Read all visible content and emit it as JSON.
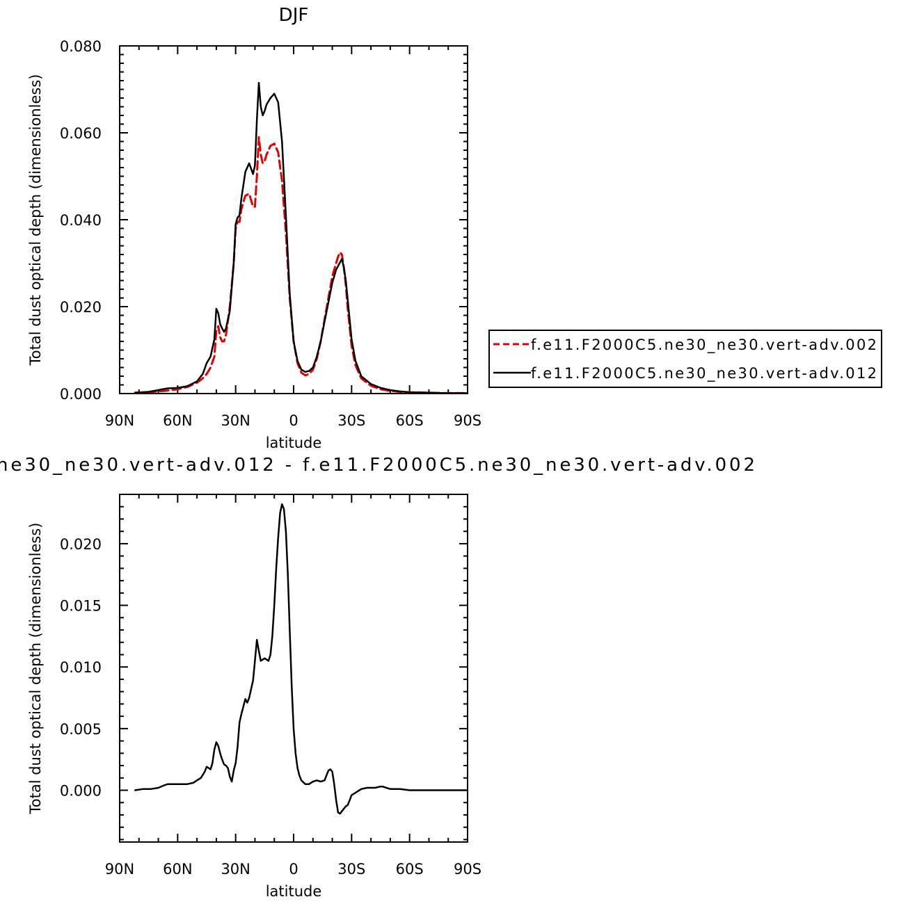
{
  "chart_data": [
    {
      "type": "line",
      "title": "DJF",
      "xlabel": "latitude",
      "ylabel": "Total dust optical depth (dimensionless)",
      "xlim": [
        -90,
        90
      ],
      "ylim": [
        0,
        0.08
      ],
      "x_ticks": [
        -90,
        -60,
        -30,
        0,
        30,
        60,
        90
      ],
      "x_tick_labels": [
        "90N",
        "60N",
        "30N",
        "0",
        "30S",
        "60S",
        "90S"
      ],
      "y_ticks": [
        0,
        0.02,
        0.04,
        0.06,
        0.08
      ],
      "y_tick_labels": [
        "0.000",
        "0.020",
        "0.040",
        "0.060",
        "0.080"
      ],
      "grid": false,
      "legend": "right",
      "series": [
        {
          "name": "f.e11.F2000C5.ne30_ne30.vert-adv.002",
          "color": "#e00000",
          "dash": "dashed",
          "x": [
            -82,
            -75,
            -70,
            -65,
            -60,
            -55,
            -50,
            -47,
            -45,
            -43,
            -41,
            -40,
            -39,
            -38,
            -37,
            -36,
            -35,
            -33,
            -31,
            -30,
            -29,
            -28,
            -27,
            -25,
            -23,
            -21,
            -20,
            -19,
            -18,
            -17,
            -16,
            -15,
            -14,
            -12,
            -10,
            -8,
            -6,
            -4,
            -2,
            0,
            2,
            4,
            6,
            8,
            10,
            12,
            14,
            16,
            18,
            20,
            22,
            23,
            24,
            25,
            26,
            27,
            28,
            30,
            32,
            35,
            40,
            45,
            50,
            55,
            60,
            70,
            80,
            90
          ],
          "y": [
            0.0002,
            0.0003,
            0.0005,
            0.0007,
            0.001,
            0.0015,
            0.0025,
            0.0035,
            0.0045,
            0.006,
            0.0085,
            0.0145,
            0.0155,
            0.013,
            0.012,
            0.012,
            0.0135,
            0.02,
            0.03,
            0.038,
            0.0395,
            0.0395,
            0.0425,
            0.0455,
            0.046,
            0.043,
            0.043,
            0.05,
            0.059,
            0.055,
            0.053,
            0.0535,
            0.055,
            0.057,
            0.0575,
            0.0555,
            0.049,
            0.037,
            0.022,
            0.012,
            0.007,
            0.0048,
            0.0042,
            0.0045,
            0.0055,
            0.008,
            0.012,
            0.017,
            0.022,
            0.027,
            0.03,
            0.0315,
            0.0325,
            0.032,
            0.029,
            0.025,
            0.0195,
            0.011,
            0.0065,
            0.0035,
            0.0018,
            0.001,
            0.0006,
            0.0004,
            0.0003,
            0.0002,
            0.0001,
            0.0001
          ]
        },
        {
          "name": "f.e11.F2000C5.ne30_ne30.vert-adv.012",
          "color": "#000000",
          "dash": "solid",
          "x": [
            -82,
            -75,
            -70,
            -68,
            -65,
            -60,
            -55,
            -50,
            -47,
            -45,
            -43,
            -41,
            -40,
            -39,
            -38,
            -37,
            -36,
            -35,
            -33,
            -31,
            -30,
            -29,
            -28,
            -27,
            -25,
            -23,
            -21,
            -20,
            -19,
            -18,
            -17,
            -16,
            -15,
            -14,
            -12,
            -10,
            -8,
            -6,
            -4,
            -2,
            0,
            2,
            4,
            6,
            8,
            10,
            12,
            14,
            16,
            18,
            20,
            22,
            24,
            25,
            26,
            27,
            28,
            30,
            32,
            35,
            40,
            45,
            50,
            55,
            60,
            70,
            80,
            90
          ],
          "y": [
            0.0002,
            0.0004,
            0.0008,
            0.001,
            0.0012,
            0.0013,
            0.0017,
            0.0028,
            0.0045,
            0.007,
            0.0085,
            0.0125,
            0.0195,
            0.0185,
            0.016,
            0.015,
            0.0142,
            0.015,
            0.019,
            0.03,
            0.039,
            0.0405,
            0.041,
            0.045,
            0.051,
            0.053,
            0.0505,
            0.0525,
            0.063,
            0.0715,
            0.066,
            0.064,
            0.065,
            0.0665,
            0.068,
            0.069,
            0.067,
            0.058,
            0.041,
            0.023,
            0.012,
            0.0075,
            0.0055,
            0.005,
            0.0052,
            0.006,
            0.0085,
            0.012,
            0.0165,
            0.021,
            0.0255,
            0.0285,
            0.0302,
            0.031,
            0.029,
            0.026,
            0.0215,
            0.0125,
            0.0075,
            0.004,
            0.0022,
            0.0013,
            0.0008,
            0.0005,
            0.0003,
            0.0002,
            0.0001,
            0.0001
          ]
        }
      ]
    },
    {
      "type": "line",
      "title": "ne30_ne30.vert-adv.012 - f.e11.F2000C5.ne30_ne30.vert-adv.002",
      "xlabel": "latitude",
      "ylabel": "Total dust optical depth (dimensionless)",
      "xlim": [
        -90,
        90
      ],
      "ylim": [
        -0.0042,
        0.024
      ],
      "x_ticks": [
        -90,
        -60,
        -30,
        0,
        30,
        60,
        90
      ],
      "x_tick_labels": [
        "90N",
        "60N",
        "30N",
        "0",
        "30S",
        "60S",
        "90S"
      ],
      "y_ticks": [
        0,
        0.005,
        0.01,
        0.015,
        0.02
      ],
      "y_tick_labels": [
        "0.000",
        "0.005",
        "0.010",
        "0.015",
        "0.020"
      ],
      "grid": false,
      "series": [
        {
          "color": "#000000",
          "dash": "solid",
          "x": [
            -82,
            -78,
            -74,
            -70,
            -67,
            -65,
            -62,
            -60,
            -57,
            -55,
            -52,
            -50,
            -48,
            -46,
            -45,
            -44,
            -43,
            -42,
            -41,
            -40,
            -39,
            -38,
            -37,
            -36,
            -35,
            -34,
            -33,
            -32,
            -31,
            -30,
            -29,
            -28,
            -27,
            -26,
            -25,
            -24,
            -23,
            -22,
            -21,
            -20,
            -19,
            -18,
            -17,
            -16,
            -15,
            -14,
            -13,
            -12,
            -11,
            -10,
            -9,
            -8,
            -7,
            -6,
            -5,
            -4,
            -3,
            -2,
            -1,
            0,
            1,
            2,
            3,
            4,
            6,
            8,
            10,
            12,
            14,
            16,
            17,
            18,
            19,
            20,
            21,
            22,
            23,
            24,
            25,
            26,
            27,
            28,
            29,
            30,
            32,
            35,
            38,
            40,
            42,
            45,
            46,
            48,
            50,
            55,
            60,
            70,
            80,
            90
          ],
          "y": [
            0.0,
            0.0001,
            0.0001,
            0.0002,
            0.0004,
            0.0005,
            0.0005,
            0.0005,
            0.0005,
            0.0005,
            0.0006,
            0.0008,
            0.001,
            0.0015,
            0.0019,
            0.0018,
            0.0017,
            0.0022,
            0.0033,
            0.0039,
            0.0036,
            0.003,
            0.0025,
            0.0021,
            0.002,
            0.0018,
            0.0011,
            0.0007,
            0.0016,
            0.0022,
            0.0035,
            0.0055,
            0.0062,
            0.0068,
            0.0074,
            0.0071,
            0.0075,
            0.0082,
            0.0089,
            0.0105,
            0.0122,
            0.0113,
            0.0105,
            0.0106,
            0.0107,
            0.0106,
            0.0105,
            0.011,
            0.0125,
            0.015,
            0.018,
            0.0205,
            0.0225,
            0.0232,
            0.0228,
            0.021,
            0.0175,
            0.013,
            0.0085,
            0.005,
            0.003,
            0.0018,
            0.0012,
            0.0008,
            0.0005,
            0.0005,
            0.0007,
            0.0008,
            0.0007,
            0.0008,
            0.0012,
            0.0016,
            0.0017,
            0.0015,
            0.0005,
            -0.0008,
            -0.0018,
            -0.0019,
            -0.0017,
            -0.0015,
            -0.0013,
            -0.0012,
            -0.0008,
            -0.0004,
            -0.0002,
            0.0001,
            0.0002,
            0.0002,
            0.0002,
            0.0003,
            0.0003,
            0.0002,
            0.0001,
            0.0001,
            0.0,
            0.0,
            0.0,
            0.0
          ]
        }
      ]
    }
  ]
}
